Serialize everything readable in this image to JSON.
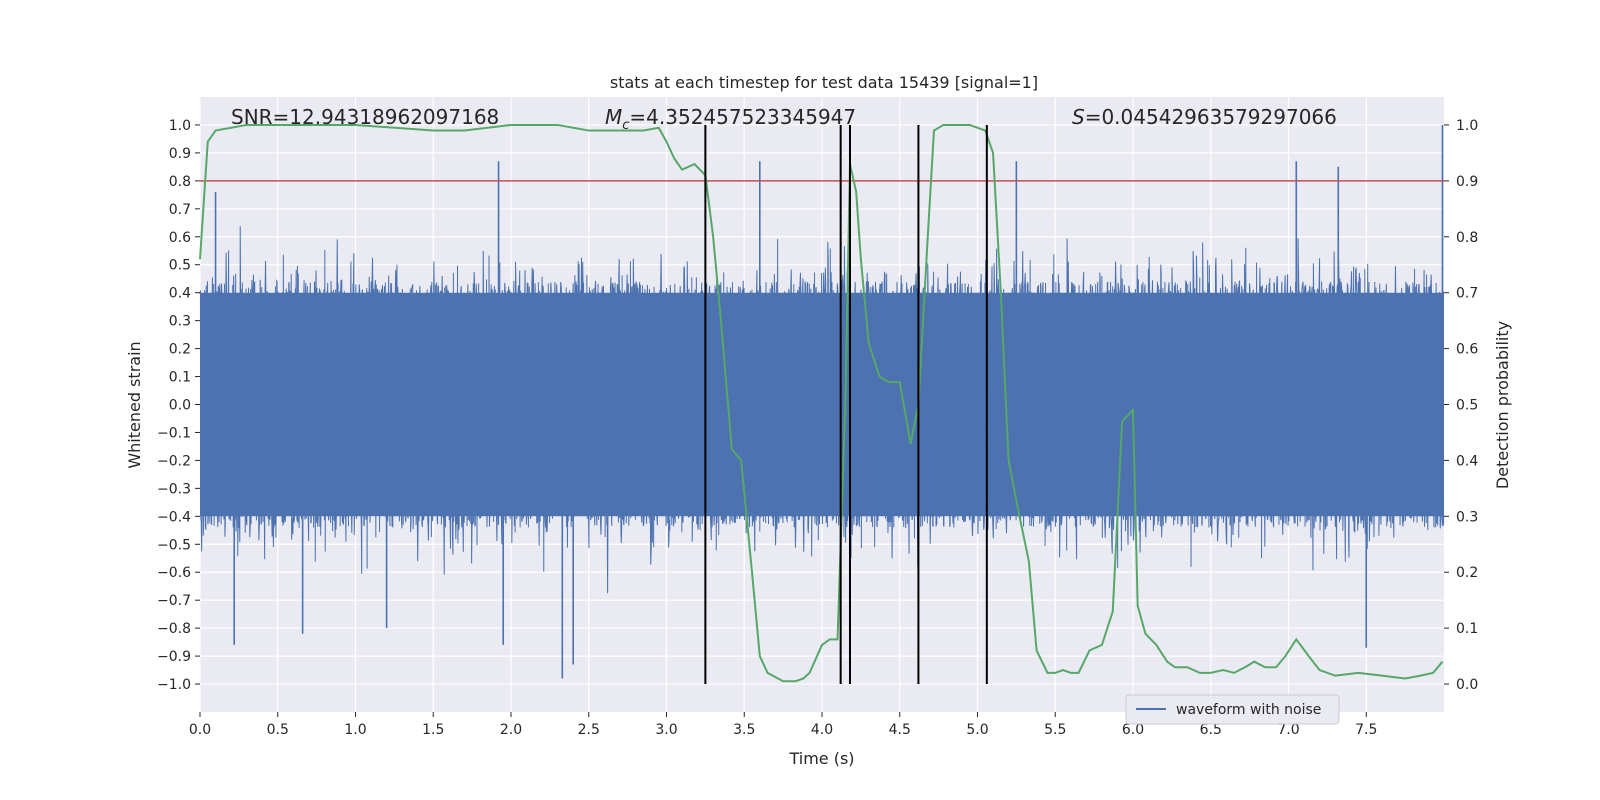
{
  "chart_data": {
    "type": "line",
    "title": "stats at each timestep for test data 15439 [signal=1]",
    "xlabel": "Time (s)",
    "ylabel_left": "Whitened strain",
    "ylabel_right": "Detection probability",
    "xlim": [
      0.0,
      8.0
    ],
    "ylim_left": [
      -1.1,
      1.1
    ],
    "ylim_right": [
      -0.05,
      1.05
    ],
    "x_ticks": [
      0.0,
      0.5,
      1.0,
      1.5,
      2.0,
      2.5,
      3.0,
      3.5,
      4.0,
      4.5,
      5.0,
      5.5,
      6.0,
      6.5,
      7.0,
      7.5
    ],
    "x_tick_labels": [
      "0.0",
      "0.5",
      "1.0",
      "1.5",
      "2.0",
      "2.5",
      "3.0",
      "3.5",
      "4.0",
      "4.5",
      "5.0",
      "5.5",
      "6.0",
      "6.5",
      "7.0",
      "7.5"
    ],
    "y_ticks_left": [
      1.0,
      0.9,
      0.8,
      0.7,
      0.6,
      0.5,
      0.4,
      0.3,
      0.2,
      0.1,
      0.0,
      -0.1,
      -0.2,
      -0.3,
      -0.4,
      -0.5,
      -0.6,
      -0.7,
      -0.8,
      -0.9,
      -1.0
    ],
    "y_tick_labels_left": [
      "1.0",
      "0.9",
      "0.8",
      "0.7",
      "0.6",
      "0.5",
      "0.4",
      "0.3",
      "0.2",
      "0.1",
      "0.0",
      "−0.1",
      "−0.2",
      "−0.3",
      "−0.4",
      "−0.5",
      "−0.6",
      "−0.7",
      "−0.8",
      "−0.9",
      "−1.0"
    ],
    "y_ticks_right": [
      1.0,
      0.9,
      0.8,
      0.7,
      0.6,
      0.5,
      0.4,
      0.3,
      0.2,
      0.1,
      0.0
    ],
    "y_tick_labels_right": [
      "1.0",
      "0.9",
      "0.8",
      "0.7",
      "0.6",
      "0.5",
      "0.4",
      "0.3",
      "0.2",
      "0.1",
      "0.0"
    ],
    "grid": true,
    "legend_placement": "bottom-right",
    "annotations": {
      "snr": "SNR=12.94318962097168",
      "mc_symbol": "M",
      "mc_sub": "c",
      "mc_value": "=4.352457523345947",
      "s_symbol": "S",
      "s_value": "=0.04542963579297066"
    },
    "threshold_line": {
      "y": 0.9,
      "axis": "right",
      "color": "#c44e52"
    },
    "vertical_lines": [
      3.25,
      4.12,
      4.18,
      4.62,
      5.06
    ],
    "series": [
      {
        "name": "waveform with noise",
        "axis": "left",
        "color": "#4c72b0",
        "render": "noise",
        "envelope": [
          0.4,
          0.87
        ],
        "notable_spikes": [
          {
            "x": 0.1,
            "y": 0.76
          },
          {
            "x": 0.22,
            "y": -0.86
          },
          {
            "x": 0.66,
            "y": -0.82
          },
          {
            "x": 1.2,
            "y": -0.8
          },
          {
            "x": 1.92,
            "y": 0.87
          },
          {
            "x": 1.95,
            "y": -0.86
          },
          {
            "x": 2.33,
            "y": -0.98
          },
          {
            "x": 2.4,
            "y": -0.93
          },
          {
            "x": 3.6,
            "y": 0.87
          },
          {
            "x": 4.18,
            "y": 0.9
          },
          {
            "x": 5.25,
            "y": 0.87
          },
          {
            "x": 7.05,
            "y": 0.87
          },
          {
            "x": 7.32,
            "y": 0.85
          },
          {
            "x": 7.5,
            "y": -0.87
          },
          {
            "x": 7.99,
            "y": 1.0
          }
        ]
      },
      {
        "name": "",
        "axis": "right",
        "color": "#55a868",
        "x": [
          0.0,
          0.05,
          0.1,
          0.3,
          0.6,
          1.0,
          1.5,
          1.7,
          2.0,
          2.3,
          2.5,
          2.7,
          2.85,
          2.95,
          3.0,
          3.05,
          3.1,
          3.18,
          3.25,
          3.3,
          3.35,
          3.42,
          3.48,
          3.55,
          3.6,
          3.65,
          3.75,
          3.83,
          3.88,
          3.92,
          4.0,
          4.05,
          4.1,
          4.15,
          4.18,
          4.22,
          4.25,
          4.3,
          4.37,
          4.43,
          4.5,
          4.57,
          4.62,
          4.68,
          4.72,
          4.78,
          4.85,
          4.95,
          5.05,
          5.1,
          5.15,
          5.2,
          5.27,
          5.33,
          5.38,
          5.45,
          5.5,
          5.55,
          5.6,
          5.65,
          5.72,
          5.8,
          5.87,
          5.93,
          6.0,
          6.03,
          6.08,
          6.15,
          6.22,
          6.27,
          6.35,
          6.43,
          6.5,
          6.58,
          6.65,
          6.72,
          6.78,
          6.85,
          6.92,
          6.98,
          7.05,
          7.13,
          7.2,
          7.3,
          7.45,
          7.6,
          7.75,
          7.85,
          7.93,
          7.99
        ],
        "y": [
          0.76,
          0.97,
          0.99,
          1.0,
          1.0,
          1.0,
          0.99,
          0.99,
          1.0,
          1.0,
          0.99,
          0.99,
          0.99,
          0.995,
          0.97,
          0.94,
          0.92,
          0.93,
          0.91,
          0.8,
          0.65,
          0.42,
          0.4,
          0.2,
          0.05,
          0.02,
          0.005,
          0.005,
          0.01,
          0.02,
          0.07,
          0.08,
          0.08,
          0.5,
          0.93,
          0.88,
          0.76,
          0.61,
          0.55,
          0.54,
          0.54,
          0.43,
          0.5,
          0.8,
          0.99,
          1.0,
          1.0,
          1.0,
          0.99,
          0.95,
          0.7,
          0.4,
          0.3,
          0.22,
          0.06,
          0.02,
          0.02,
          0.025,
          0.02,
          0.02,
          0.06,
          0.07,
          0.13,
          0.47,
          0.49,
          0.14,
          0.09,
          0.07,
          0.04,
          0.03,
          0.03,
          0.02,
          0.02,
          0.025,
          0.02,
          0.03,
          0.04,
          0.03,
          0.03,
          0.05,
          0.08,
          0.05,
          0.025,
          0.015,
          0.02,
          0.015,
          0.01,
          0.015,
          0.02,
          0.04
        ]
      }
    ]
  }
}
